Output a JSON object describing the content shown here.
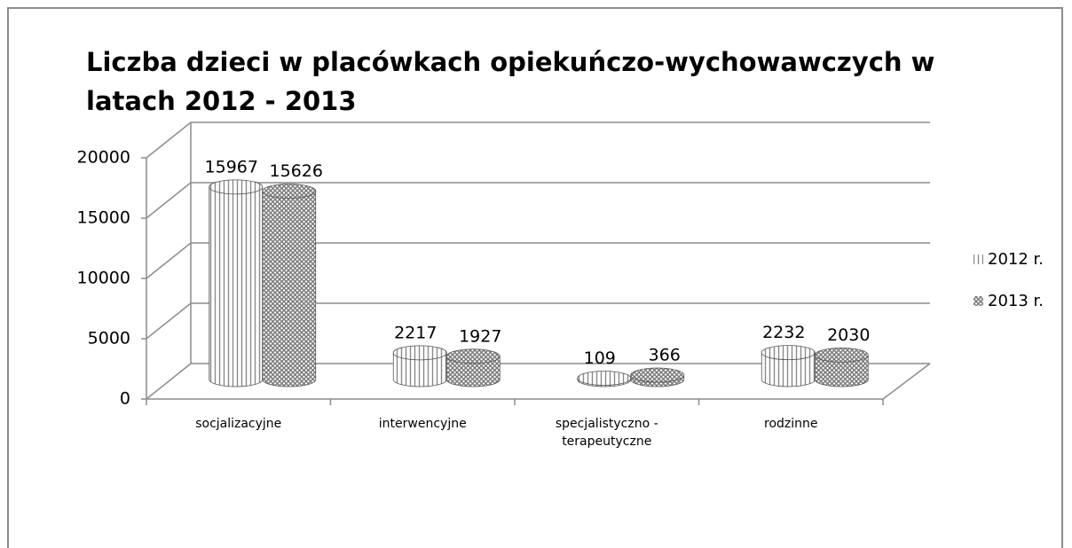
{
  "chart_data": {
    "type": "bar3d",
    "title": "Liczba dzieci w placówkach opiekuńczo-wychowawczych w latach 2012 - 2013",
    "categories": [
      "socjalizacyjne",
      "interwencyjne",
      "specjalistyczno - terapeutyczne",
      "rodzinne"
    ],
    "series": [
      {
        "name": "2012 r.",
        "color": "#8a8a8a",
        "values": [
          15967,
          2217,
          109,
          2232
        ]
      },
      {
        "name": "2013 r.",
        "color": "#7a7a7a",
        "values": [
          15626,
          1927,
          366,
          2030
        ]
      }
    ],
    "ylim": [
      0,
      20000
    ],
    "yticks": [
      0,
      5000,
      10000,
      15000,
      20000
    ],
    "grid": true,
    "legend": "right"
  }
}
